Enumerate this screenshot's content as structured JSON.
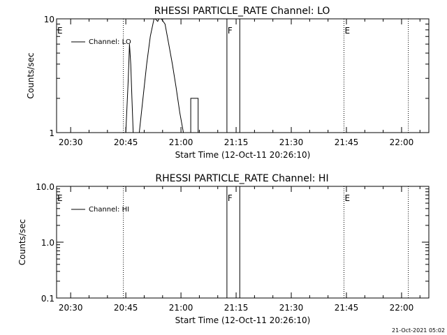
{
  "chart_data": [
    {
      "type": "line",
      "title": "RHESSI PARTICLE_RATE Channel: LO",
      "ylabel": "Counts/sec",
      "xlabel": "Start Time (12-Oct-11 20:26:10)",
      "y_scale": "log",
      "ylim": [
        1,
        10
      ],
      "y_ticks": [
        {
          "value": 1,
          "label": "1"
        },
        {
          "value": 10,
          "label": "10"
        }
      ],
      "x_ticks": [
        "20:30",
        "20:45",
        "21:00",
        "21:15",
        "21:30",
        "21:45",
        "22:00"
      ],
      "legend": {
        "entries": [
          "Channel: LO"
        ],
        "position": "top-left"
      },
      "series": [
        {
          "name": "Channel: LO",
          "x": [
            "20:45:00",
            "20:45:40",
            "20:46:00",
            "20:46:20",
            "20:46:40",
            "20:47:00",
            "20:48:40",
            "20:49:40",
            "20:50:40",
            "20:51:40",
            "20:52:40",
            "20:53:00",
            "20:53:40",
            "20:54:00",
            "20:54:40",
            "20:55:40",
            "20:56:40",
            "20:57:40",
            "20:58:40",
            "20:59:40",
            "21:00:40",
            "21:01:40",
            "21:02:40",
            "21:02:40",
            "21:04:40",
            "21:04:40",
            "21:12:30",
            "21:12:30",
            "21:16:00",
            "21:16:00"
          ],
          "values": [
            1,
            3,
            6,
            4,
            2,
            1,
            1,
            2,
            4,
            7,
            10.5,
            10.5,
            9.5,
            10.5,
            10.5,
            9,
            6,
            4,
            2.5,
            1.5,
            1,
            1,
            1,
            2,
            2,
            1,
            1,
            10.5,
            10.5,
            1
          ]
        }
      ],
      "annotations": [
        {
          "text": "E",
          "x": "20:26:10"
        },
        {
          "text": "F",
          "x": "21:12:30"
        },
        {
          "text": "E",
          "x": "21:44:20"
        }
      ],
      "vlines": [
        "20:44:20",
        "21:44:20",
        "22:01:50"
      ]
    },
    {
      "type": "line",
      "title": "RHESSI PARTICLE_RATE Channel: HI",
      "ylabel": "Counts/sec",
      "xlabel": "Start Time (12-Oct-11 20:26:10)",
      "y_scale": "log",
      "ylim": [
        0.1,
        10
      ],
      "y_ticks": [
        {
          "value": 0.1,
          "label": "0.1"
        },
        {
          "value": 1,
          "label": "1.0"
        },
        {
          "value": 10,
          "label": "10.0"
        }
      ],
      "x_ticks": [
        "20:30",
        "20:45",
        "21:00",
        "21:15",
        "21:30",
        "21:45",
        "22:00"
      ],
      "legend": {
        "entries": [
          "Channel: HI"
        ],
        "position": "top-left"
      },
      "series": [
        {
          "name": "Channel: HI",
          "x": [
            "21:12:30",
            "21:12:30",
            "21:16:00",
            "21:16:00"
          ],
          "values": [
            0.1,
            10.5,
            10.5,
            0.1
          ]
        }
      ],
      "annotations": [
        {
          "text": "E",
          "x": "20:26:10"
        },
        {
          "text": "F",
          "x": "21:12:30"
        },
        {
          "text": "E",
          "x": "21:44:20"
        }
      ],
      "vlines": [
        "20:44:20",
        "21:44:20",
        "22:01:50"
      ]
    }
  ],
  "footer": {
    "timestamp": "21-Oct-2021 05:02"
  }
}
